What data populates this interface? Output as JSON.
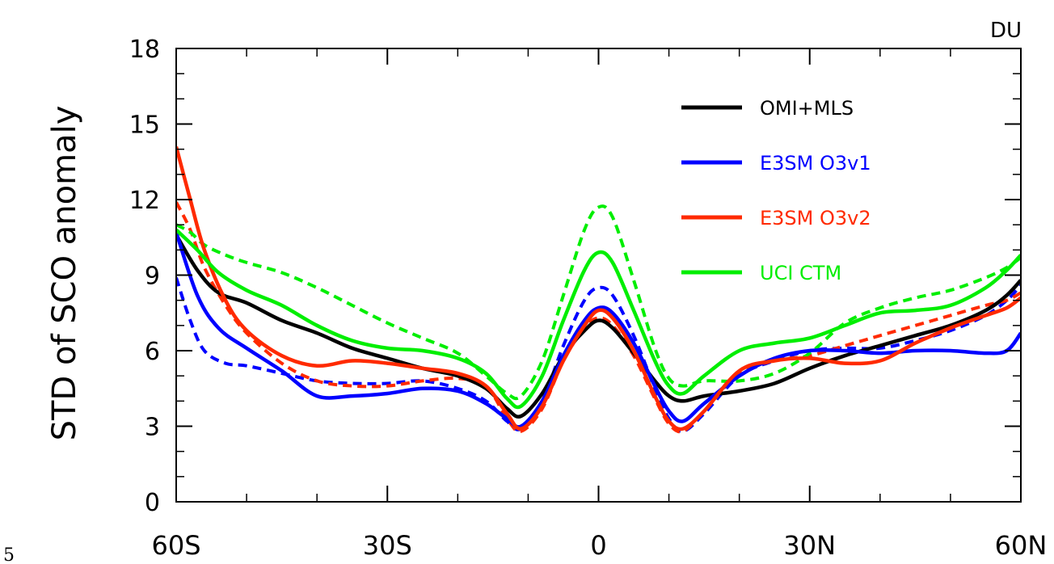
{
  "page_number": "5",
  "chart_data": {
    "type": "line",
    "ylabel": "STD of SCO anomaly",
    "unit_label": "DU",
    "xlim": [
      -60,
      60
    ],
    "ylim": [
      0,
      18
    ],
    "x_ticks": [
      {
        "value": -60,
        "label": "60S"
      },
      {
        "value": -30,
        "label": "30S"
      },
      {
        "value": 0,
        "label": "0"
      },
      {
        "value": 30,
        "label": "30N"
      },
      {
        "value": 60,
        "label": "60N"
      }
    ],
    "y_ticks": [
      {
        "value": 0,
        "label": "0"
      },
      {
        "value": 3,
        "label": "3"
      },
      {
        "value": 6,
        "label": "6"
      },
      {
        "value": 9,
        "label": "9"
      },
      {
        "value": 12,
        "label": "12"
      },
      {
        "value": 15,
        "label": "15"
      },
      {
        "value": 18,
        "label": "18"
      }
    ],
    "legend_position": "top-right",
    "series": [
      {
        "name": "OMI+MLS",
        "color": "#000000",
        "dashed": false,
        "in_legend": true,
        "x": [
          -60,
          -57,
          -54,
          -50,
          -45,
          -40,
          -35,
          -30,
          -25,
          -20,
          -16,
          -13,
          -11,
          -8,
          -5,
          -2,
          0,
          2,
          5,
          8,
          10,
          12,
          15,
          20,
          25,
          30,
          35,
          40,
          45,
          50,
          55,
          58,
          60
        ],
        "y": [
          10.6,
          9.2,
          8.3,
          7.9,
          7.2,
          6.7,
          6.1,
          5.7,
          5.3,
          5.0,
          4.5,
          3.7,
          3.4,
          4.3,
          5.8,
          6.8,
          7.2,
          6.9,
          5.9,
          4.8,
          4.2,
          4.0,
          4.2,
          4.4,
          4.7,
          5.3,
          5.8,
          6.2,
          6.6,
          7.0,
          7.6,
          8.2,
          8.8
        ]
      },
      {
        "name": "E3SM O3v1",
        "color": "#0000ff",
        "dashed": false,
        "in_legend": true,
        "x": [
          -60,
          -57,
          -54,
          -50,
          -45,
          -40,
          -35,
          -30,
          -25,
          -20,
          -16,
          -13,
          -11,
          -8,
          -5,
          -2,
          0,
          2,
          5,
          8,
          10,
          12,
          15,
          20,
          25,
          30,
          35,
          40,
          45,
          50,
          55,
          58,
          60
        ],
        "y": [
          10.7,
          8.2,
          6.9,
          6.1,
          5.2,
          4.2,
          4.2,
          4.3,
          4.5,
          4.4,
          3.9,
          3.3,
          3.0,
          4.0,
          5.8,
          7.2,
          7.7,
          7.5,
          6.3,
          4.6,
          3.6,
          3.2,
          3.9,
          5.0,
          5.7,
          6.0,
          6.0,
          5.9,
          6.0,
          6.0,
          5.9,
          6.0,
          6.7
        ]
      },
      {
        "name": "E3SM O3v2",
        "color": "#ff2a00",
        "dashed": false,
        "in_legend": true,
        "x": [
          -60,
          -58,
          -56,
          -53,
          -50,
          -45,
          -40,
          -35,
          -30,
          -25,
          -20,
          -16,
          -13,
          -11,
          -8,
          -5,
          -2,
          0,
          2,
          5,
          8,
          10,
          12,
          15,
          20,
          25,
          30,
          35,
          40,
          45,
          50,
          55,
          58,
          60
        ],
        "y": [
          14.1,
          12.0,
          10.0,
          8.0,
          6.8,
          5.8,
          5.4,
          5.6,
          5.5,
          5.3,
          5.1,
          4.6,
          3.5,
          2.9,
          3.8,
          5.6,
          7.0,
          7.6,
          7.3,
          6.0,
          4.2,
          3.2,
          2.9,
          3.6,
          5.2,
          5.6,
          5.7,
          5.5,
          5.6,
          6.3,
          6.9,
          7.4,
          7.7,
          8.1
        ]
      },
      {
        "name": "UCI CTM",
        "color": "#00ee00",
        "dashed": false,
        "in_legend": true,
        "x": [
          -60,
          -57,
          -54,
          -50,
          -45,
          -40,
          -35,
          -30,
          -25,
          -20,
          -16,
          -13,
          -11,
          -8,
          -5,
          -2,
          0,
          2,
          5,
          8,
          10,
          12,
          15,
          20,
          25,
          30,
          35,
          40,
          45,
          50,
          55,
          58,
          60
        ],
        "y": [
          10.8,
          10.0,
          9.1,
          8.4,
          7.8,
          7.0,
          6.4,
          6.1,
          6.0,
          5.7,
          5.1,
          4.1,
          3.8,
          5.0,
          7.2,
          9.2,
          9.9,
          9.5,
          7.6,
          5.6,
          4.6,
          4.3,
          5.0,
          6.0,
          6.3,
          6.5,
          7.0,
          7.5,
          7.6,
          7.8,
          8.5,
          9.2,
          9.8
        ]
      },
      {
        "name": "",
        "color": "#0000ff",
        "dashed": true,
        "in_legend": false,
        "x": [
          -60,
          -58,
          -56,
          -53,
          -50,
          -45,
          -40,
          -35,
          -30,
          -25,
          -20,
          -16,
          -13,
          -11,
          -8,
          -5,
          -2,
          0,
          2,
          5,
          8,
          10,
          12,
          15,
          20,
          25,
          30,
          35,
          40,
          45,
          50,
          55,
          58,
          60
        ],
        "y": [
          8.9,
          7.2,
          6.0,
          5.5,
          5.4,
          5.1,
          4.8,
          4.7,
          4.7,
          4.8,
          4.5,
          4.0,
          3.2,
          2.9,
          4.0,
          6.2,
          8.0,
          8.5,
          8.2,
          6.6,
          4.5,
          3.3,
          2.8,
          3.5,
          5.0,
          5.6,
          6.0,
          6.1,
          6.1,
          6.4,
          6.8,
          7.4,
          8.0,
          8.6
        ]
      },
      {
        "name": "",
        "color": "#ff2a00",
        "dashed": true,
        "in_legend": false,
        "x": [
          -60,
          -58,
          -56,
          -53,
          -50,
          -45,
          -40,
          -35,
          -30,
          -25,
          -20,
          -16,
          -13,
          -11,
          -8,
          -5,
          -2,
          0,
          2,
          5,
          8,
          10,
          12,
          15,
          20,
          25,
          30,
          35,
          40,
          45,
          50,
          55,
          58,
          60
        ],
        "y": [
          11.9,
          10.8,
          9.3,
          7.8,
          6.7,
          5.5,
          4.8,
          4.6,
          4.6,
          4.8,
          4.9,
          4.6,
          3.3,
          2.8,
          3.7,
          5.6,
          6.9,
          7.3,
          7.0,
          5.8,
          4.1,
          3.1,
          2.8,
          3.6,
          5.1,
          5.6,
          5.8,
          6.2,
          6.6,
          7.0,
          7.4,
          7.8,
          8.0,
          8.3
        ]
      },
      {
        "name": "",
        "color": "#00ee00",
        "dashed": true,
        "in_legend": false,
        "x": [
          -60,
          -58,
          -56,
          -53,
          -50,
          -45,
          -40,
          -35,
          -30,
          -25,
          -20,
          -16,
          -13,
          -11,
          -8,
          -5,
          -2,
          0,
          2,
          5,
          8,
          10,
          12,
          15,
          20,
          25,
          30,
          35,
          40,
          45,
          50,
          55,
          58,
          60
        ],
        "y": [
          11.0,
          10.7,
          10.2,
          9.8,
          9.5,
          9.1,
          8.5,
          7.8,
          7.1,
          6.5,
          5.9,
          5.0,
          4.3,
          4.2,
          5.6,
          8.2,
          10.8,
          11.7,
          11.3,
          8.8,
          6.1,
          4.9,
          4.6,
          4.8,
          4.8,
          5.1,
          5.9,
          7.1,
          7.7,
          8.1,
          8.4,
          8.9,
          9.3,
          9.7
        ]
      }
    ]
  }
}
